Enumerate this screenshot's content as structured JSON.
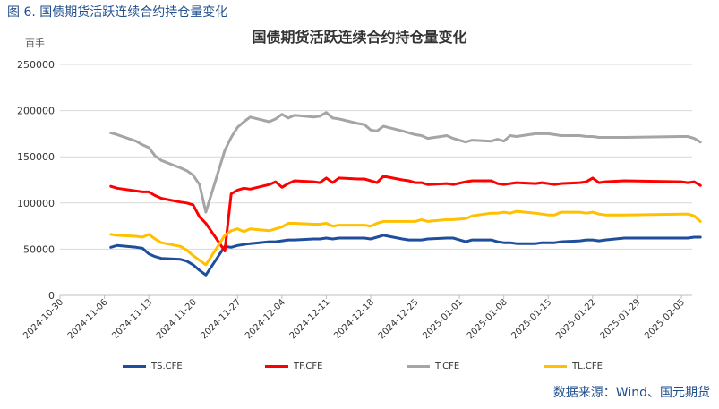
{
  "figure": {
    "caption": "图 6.  国债期货活跃连续合约持仓量变化",
    "source": "数据来源：Wind、国元期货"
  },
  "chart_data": {
    "type": "line",
    "title": "国债期货活跃连续合约持仓量变化",
    "unit": "百手",
    "ylim": [
      0,
      250000
    ],
    "yticks": [
      0,
      50000,
      100000,
      150000,
      200000,
      250000
    ],
    "ytick_labels": [
      "0",
      "50000",
      "100000",
      "150000",
      "200000",
      "250000"
    ],
    "xtick_labels": [
      "2024-10-30",
      "2024-11-06",
      "2024-11-13",
      "2024-11-20",
      "2024-11-27",
      "2024-12-04",
      "2024-12-11",
      "2024-12-18",
      "2024-12-25",
      "2025-01-01",
      "2025-01-08",
      "2025-01-15",
      "2025-01-22",
      "2025-01-29",
      "2025-02-05"
    ],
    "grid": true,
    "legend_position": "bottom",
    "series": [
      {
        "name": "TS.CFE",
        "color": "#1f4e9c",
        "points": [
          [
            "2024-11-07",
            52000
          ],
          [
            "2024-11-08",
            54000
          ],
          [
            "2024-11-11",
            52000
          ],
          [
            "2024-11-12",
            51000
          ],
          [
            "2024-11-13",
            45000
          ],
          [
            "2024-11-14",
            42000
          ],
          [
            "2024-11-15",
            40000
          ],
          [
            "2024-11-18",
            39000
          ],
          [
            "2024-11-19",
            37000
          ],
          [
            "2024-11-20",
            33000
          ],
          [
            "2024-11-21",
            27000
          ],
          [
            "2024-11-22",
            22000
          ],
          [
            "2024-11-25",
            53000
          ],
          [
            "2024-11-26",
            52000
          ],
          [
            "2024-11-27",
            54000
          ],
          [
            "2024-11-28",
            55000
          ],
          [
            "2024-11-29",
            56000
          ],
          [
            "2024-12-02",
            58000
          ],
          [
            "2024-12-03",
            58000
          ],
          [
            "2024-12-04",
            59000
          ],
          [
            "2024-12-05",
            60000
          ],
          [
            "2024-12-06",
            60000
          ],
          [
            "2024-12-09",
            61000
          ],
          [
            "2024-12-10",
            61000
          ],
          [
            "2024-12-11",
            62000
          ],
          [
            "2024-12-12",
            61000
          ],
          [
            "2024-12-13",
            62000
          ],
          [
            "2024-12-16",
            62000
          ],
          [
            "2024-12-17",
            62000
          ],
          [
            "2024-12-18",
            61000
          ],
          [
            "2024-12-19",
            63000
          ],
          [
            "2024-12-20",
            65000
          ],
          [
            "2024-12-23",
            61000
          ],
          [
            "2024-12-24",
            60000
          ],
          [
            "2024-12-25",
            60000
          ],
          [
            "2024-12-26",
            60000
          ],
          [
            "2024-12-27",
            61000
          ],
          [
            "2024-12-30",
            62000
          ],
          [
            "2024-12-31",
            62000
          ],
          [
            "2025-01-02",
            58000
          ],
          [
            "2025-01-03",
            60000
          ],
          [
            "2025-01-06",
            60000
          ],
          [
            "2025-01-07",
            58000
          ],
          [
            "2025-01-08",
            57000
          ],
          [
            "2025-01-09",
            57000
          ],
          [
            "2025-01-10",
            56000
          ],
          [
            "2025-01-13",
            56000
          ],
          [
            "2025-01-14",
            57000
          ],
          [
            "2025-01-15",
            57000
          ],
          [
            "2025-01-16",
            57000
          ],
          [
            "2025-01-17",
            58000
          ],
          [
            "2025-01-20",
            59000
          ],
          [
            "2025-01-21",
            60000
          ],
          [
            "2025-01-22",
            60000
          ],
          [
            "2025-01-23",
            59000
          ],
          [
            "2025-01-24",
            60000
          ],
          [
            "2025-01-27",
            62000
          ],
          [
            "2025-02-05",
            62000
          ],
          [
            "2025-02-06",
            62000
          ],
          [
            "2025-02-07",
            63000
          ],
          [
            "2025-02-08",
            63000
          ]
        ]
      },
      {
        "name": "TF.CFE",
        "color": "#ff0000",
        "points": [
          [
            "2024-11-07",
            118000
          ],
          [
            "2024-11-08",
            116000
          ],
          [
            "2024-11-11",
            113000
          ],
          [
            "2024-11-12",
            112000
          ],
          [
            "2024-11-13",
            112000
          ],
          [
            "2024-11-14",
            108000
          ],
          [
            "2024-11-15",
            105000
          ],
          [
            "2024-11-18",
            101000
          ],
          [
            "2024-11-19",
            100000
          ],
          [
            "2024-11-20",
            98000
          ],
          [
            "2024-11-21",
            85000
          ],
          [
            "2024-11-22",
            78000
          ],
          [
            "2024-11-25",
            48000
          ],
          [
            "2024-11-26",
            110000
          ],
          [
            "2024-11-27",
            114000
          ],
          [
            "2024-11-28",
            116000
          ],
          [
            "2024-11-29",
            115000
          ],
          [
            "2024-12-02",
            120000
          ],
          [
            "2024-12-03",
            123000
          ],
          [
            "2024-12-04",
            117000
          ],
          [
            "2024-12-05",
            121000
          ],
          [
            "2024-12-06",
            124000
          ],
          [
            "2024-12-09",
            123000
          ],
          [
            "2024-12-10",
            122000
          ],
          [
            "2024-12-11",
            127000
          ],
          [
            "2024-12-12",
            122000
          ],
          [
            "2024-12-13",
            127000
          ],
          [
            "2024-12-16",
            126000
          ],
          [
            "2024-12-17",
            126000
          ],
          [
            "2024-12-18",
            124000
          ],
          [
            "2024-12-19",
            122000
          ],
          [
            "2024-12-20",
            129000
          ],
          [
            "2024-12-23",
            125000
          ],
          [
            "2024-12-24",
            124000
          ],
          [
            "2024-12-25",
            122000
          ],
          [
            "2024-12-26",
            122000
          ],
          [
            "2024-12-27",
            120000
          ],
          [
            "2024-12-30",
            121000
          ],
          [
            "2024-12-31",
            120000
          ],
          [
            "2025-01-02",
            123000
          ],
          [
            "2025-01-03",
            124000
          ],
          [
            "2025-01-06",
            124000
          ],
          [
            "2025-01-07",
            121000
          ],
          [
            "2025-01-08",
            120000
          ],
          [
            "2025-01-09",
            121000
          ],
          [
            "2025-01-10",
            122000
          ],
          [
            "2025-01-13",
            121000
          ],
          [
            "2025-01-14",
            122000
          ],
          [
            "2025-01-15",
            121000
          ],
          [
            "2025-01-16",
            120000
          ],
          [
            "2025-01-17",
            121000
          ],
          [
            "2025-01-20",
            122000
          ],
          [
            "2025-01-21",
            123000
          ],
          [
            "2025-01-22",
            127000
          ],
          [
            "2025-01-23",
            122000
          ],
          [
            "2025-01-24",
            123000
          ],
          [
            "2025-01-27",
            124000
          ],
          [
            "2025-02-05",
            123000
          ],
          [
            "2025-02-06",
            122000
          ],
          [
            "2025-02-07",
            123000
          ],
          [
            "2025-02-08",
            119000
          ]
        ]
      },
      {
        "name": "T.CFE",
        "color": "#a5a5a5",
        "points": [
          [
            "2024-11-07",
            176000
          ],
          [
            "2024-11-08",
            174000
          ],
          [
            "2024-11-11",
            167000
          ],
          [
            "2024-11-12",
            163000
          ],
          [
            "2024-11-13",
            160000
          ],
          [
            "2024-11-14",
            151000
          ],
          [
            "2024-11-15",
            146000
          ],
          [
            "2024-11-18",
            138000
          ],
          [
            "2024-11-19",
            135000
          ],
          [
            "2024-11-20",
            130000
          ],
          [
            "2024-11-21",
            120000
          ],
          [
            "2024-11-22",
            90000
          ],
          [
            "2024-11-25",
            157000
          ],
          [
            "2024-11-26",
            171000
          ],
          [
            "2024-11-27",
            182000
          ],
          [
            "2024-11-28",
            188000
          ],
          [
            "2024-11-29",
            193000
          ],
          [
            "2024-12-02",
            188000
          ],
          [
            "2024-12-03",
            191000
          ],
          [
            "2024-12-04",
            196000
          ],
          [
            "2024-12-05",
            192000
          ],
          [
            "2024-12-06",
            195000
          ],
          [
            "2024-12-09",
            193000
          ],
          [
            "2024-12-10",
            194000
          ],
          [
            "2024-12-11",
            198000
          ],
          [
            "2024-12-12",
            192000
          ],
          [
            "2024-12-13",
            191000
          ],
          [
            "2024-12-16",
            186000
          ],
          [
            "2024-12-17",
            185000
          ],
          [
            "2024-12-18",
            179000
          ],
          [
            "2024-12-19",
            178000
          ],
          [
            "2024-12-20",
            183000
          ],
          [
            "2024-12-23",
            178000
          ],
          [
            "2024-12-24",
            176000
          ],
          [
            "2024-12-25",
            174000
          ],
          [
            "2024-12-26",
            173000
          ],
          [
            "2024-12-27",
            170000
          ],
          [
            "2024-12-30",
            173000
          ],
          [
            "2024-12-31",
            170000
          ],
          [
            "2025-01-02",
            166000
          ],
          [
            "2025-01-03",
            168000
          ],
          [
            "2025-01-06",
            167000
          ],
          [
            "2025-01-07",
            169000
          ],
          [
            "2025-01-08",
            167000
          ],
          [
            "2025-01-09",
            173000
          ],
          [
            "2025-01-10",
            172000
          ],
          [
            "2025-01-13",
            175000
          ],
          [
            "2025-01-14",
            175000
          ],
          [
            "2025-01-15",
            175000
          ],
          [
            "2025-01-16",
            174000
          ],
          [
            "2025-01-17",
            173000
          ],
          [
            "2025-01-20",
            173000
          ],
          [
            "2025-01-21",
            172000
          ],
          [
            "2025-01-22",
            172000
          ],
          [
            "2025-01-23",
            171000
          ],
          [
            "2025-01-24",
            171000
          ],
          [
            "2025-01-27",
            171000
          ],
          [
            "2025-02-05",
            172000
          ],
          [
            "2025-02-06",
            172000
          ],
          [
            "2025-02-07",
            170000
          ],
          [
            "2025-02-08",
            166000
          ]
        ]
      },
      {
        "name": "TL.CFE",
        "color": "#ffc000",
        "points": [
          [
            "2024-11-07",
            66000
          ],
          [
            "2024-11-08",
            65000
          ],
          [
            "2024-11-11",
            64000
          ],
          [
            "2024-11-12",
            63000
          ],
          [
            "2024-11-13",
            66000
          ],
          [
            "2024-11-14",
            61000
          ],
          [
            "2024-11-15",
            57000
          ],
          [
            "2024-11-18",
            53000
          ],
          [
            "2024-11-19",
            49000
          ],
          [
            "2024-11-20",
            43000
          ],
          [
            "2024-11-21",
            38000
          ],
          [
            "2024-11-22",
            33000
          ],
          [
            "2024-11-25",
            65000
          ],
          [
            "2024-11-26",
            70000
          ],
          [
            "2024-11-27",
            72000
          ],
          [
            "2024-11-28",
            69000
          ],
          [
            "2024-11-29",
            72000
          ],
          [
            "2024-12-02",
            70000
          ],
          [
            "2024-12-03",
            72000
          ],
          [
            "2024-12-04",
            74000
          ],
          [
            "2024-12-05",
            78000
          ],
          [
            "2024-12-06",
            78000
          ],
          [
            "2024-12-09",
            77000
          ],
          [
            "2024-12-10",
            77000
          ],
          [
            "2024-12-11",
            78000
          ],
          [
            "2024-12-12",
            75000
          ],
          [
            "2024-12-13",
            76000
          ],
          [
            "2024-12-16",
            76000
          ],
          [
            "2024-12-17",
            76000
          ],
          [
            "2024-12-18",
            75000
          ],
          [
            "2024-12-19",
            78000
          ],
          [
            "2024-12-20",
            80000
          ],
          [
            "2024-12-23",
            80000
          ],
          [
            "2024-12-24",
            80000
          ],
          [
            "2024-12-25",
            80000
          ],
          [
            "2024-12-26",
            82000
          ],
          [
            "2024-12-27",
            80000
          ],
          [
            "2024-12-30",
            82000
          ],
          [
            "2024-12-31",
            82000
          ],
          [
            "2025-01-02",
            83000
          ],
          [
            "2025-01-03",
            86000
          ],
          [
            "2025-01-06",
            89000
          ],
          [
            "2025-01-07",
            89000
          ],
          [
            "2025-01-08",
            90000
          ],
          [
            "2025-01-09",
            89000
          ],
          [
            "2025-01-10",
            91000
          ],
          [
            "2025-01-13",
            89000
          ],
          [
            "2025-01-14",
            88000
          ],
          [
            "2025-01-15",
            87000
          ],
          [
            "2025-01-16",
            87000
          ],
          [
            "2025-01-17",
            90000
          ],
          [
            "2025-01-20",
            90000
          ],
          [
            "2025-01-21",
            89000
          ],
          [
            "2025-01-22",
            90000
          ],
          [
            "2025-01-23",
            88000
          ],
          [
            "2025-01-24",
            87000
          ],
          [
            "2025-01-27",
            87000
          ],
          [
            "2025-02-05",
            88000
          ],
          [
            "2025-02-06",
            88000
          ],
          [
            "2025-02-07",
            86000
          ],
          [
            "2025-02-08",
            80000
          ]
        ]
      }
    ]
  }
}
